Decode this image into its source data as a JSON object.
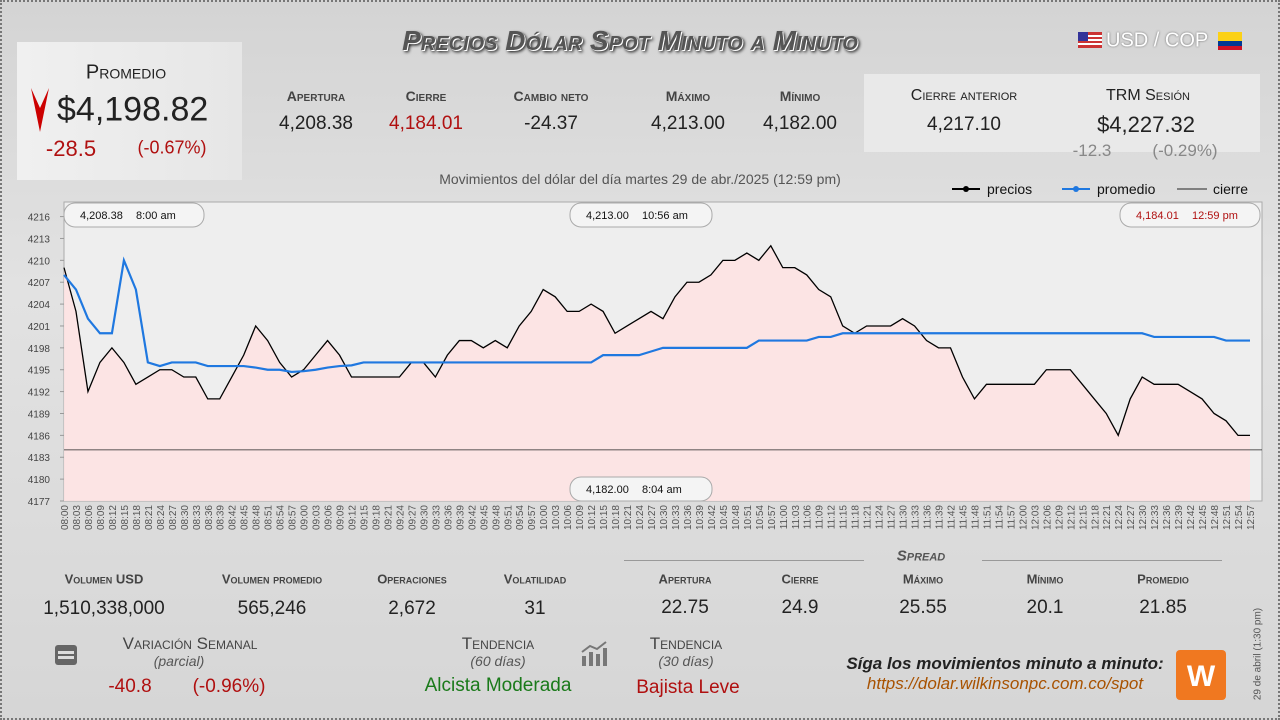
{
  "header": {
    "title": "Precios Dólar Spot Minuto a Minuto",
    "pair": "USD / COP"
  },
  "promedio": {
    "label": "Promedio",
    "value": "$4,198.82",
    "change": "-28.5",
    "change_pct": "(-0.67%)"
  },
  "stats": [
    {
      "label": "Apertura",
      "value": "4,208.38"
    },
    {
      "label": "Cierre",
      "value": "4,184.01"
    },
    {
      "label": "Cambio neto",
      "value": "-24.37"
    },
    {
      "label": "Máximo",
      "value": "4,213.00"
    },
    {
      "label": "Mínimo",
      "value": "4,182.00"
    }
  ],
  "cierre_anterior": {
    "label": "Cierre anterior",
    "value": "4,217.10"
  },
  "trm": {
    "label": "TRM Sesión",
    "value": "$4,227.32",
    "change": "-12.3",
    "change_pct": "(-0.29%)"
  },
  "chart_data": {
    "type": "line",
    "title": "Movimientos del dólar del día martes 29 de abr./2025 (12:59 pm)",
    "categories": [
      "08:00",
      "08:03",
      "08:06",
      "08:09",
      "08:12",
      "08:15",
      "08:18",
      "08:21",
      "08:24",
      "08:27",
      "08:30",
      "08:33",
      "08:36",
      "08:39",
      "08:42",
      "08:45",
      "08:48",
      "08:51",
      "08:54",
      "08:57",
      "09:00",
      "09:03",
      "09:06",
      "09:09",
      "09:12",
      "09:15",
      "09:18",
      "09:21",
      "09:24",
      "09:27",
      "09:30",
      "09:33",
      "09:36",
      "09:39",
      "09:42",
      "09:45",
      "09:48",
      "09:51",
      "09:54",
      "09:57",
      "10:00",
      "10:03",
      "10:06",
      "10:09",
      "10:12",
      "10:15",
      "10:18",
      "10:21",
      "10:24",
      "10:27",
      "10:30",
      "10:33",
      "10:36",
      "10:39",
      "10:42",
      "10:45",
      "10:48",
      "10:51",
      "10:54",
      "10:57",
      "11:00",
      "11:03",
      "11:06",
      "11:09",
      "11:12",
      "11:15",
      "11:18",
      "11:21",
      "11:24",
      "11:27",
      "11:30",
      "11:33",
      "11:36",
      "11:39",
      "11:42",
      "11:45",
      "11:48",
      "11:51",
      "11:54",
      "11:57",
      "12:00",
      "12:03",
      "12:06",
      "12:09",
      "12:12",
      "12:15",
      "12:18",
      "12:21",
      "12:24",
      "12:27",
      "12:30",
      "12:33",
      "12:36",
      "12:39",
      "12:42",
      "12:45",
      "12:48",
      "12:51",
      "12:54",
      "12:57"
    ],
    "series": [
      {
        "name": "precios",
        "color": "#000000",
        "values": [
          4209,
          4203,
          4192,
          4196,
          4198,
          4196,
          4193,
          4194,
          4195,
          4195,
          4194,
          4194,
          4191,
          4191,
          4194,
          4197,
          4201,
          4199,
          4196,
          4194,
          4195,
          4197,
          4199,
          4197,
          4194,
          4194,
          4194,
          4194,
          4194,
          4196,
          4196,
          4194,
          4197,
          4199,
          4199,
          4198,
          4199,
          4198,
          4201,
          4203,
          4206,
          4205,
          4203,
          4203,
          4204,
          4203,
          4200,
          4201,
          4202,
          4203,
          4202,
          4205,
          4207,
          4207,
          4208,
          4210,
          4210,
          4211,
          4210,
          4212,
          4209,
          4209,
          4208,
          4206,
          4205,
          4201,
          4200,
          4201,
          4201,
          4201,
          4202,
          4201,
          4199,
          4198,
          4198,
          4194,
          4191,
          4193,
          4193,
          4193,
          4193,
          4193,
          4195,
          4195,
          4195,
          4193,
          4191,
          4189,
          4186,
          4191,
          4194,
          4193,
          4193,
          4193,
          4192,
          4191,
          4189,
          4188,
          4186,
          4186
        ]
      },
      {
        "name": "promedio",
        "color": "#1f78e0",
        "values": [
          4208,
          4206,
          4202,
          4200,
          4200,
          4210,
          4206,
          4196,
          4195.5,
          4196,
          4196,
          4196,
          4195.5,
          4195.5,
          4195.5,
          4195.5,
          4195.3,
          4195,
          4195,
          4194.7,
          4194.8,
          4195,
          4195.3,
          4195.5,
          4195.6,
          4196,
          4196,
          4196,
          4196,
          4196,
          4196,
          4196,
          4196,
          4196,
          4196,
          4196,
          4196,
          4196,
          4196,
          4196,
          4196,
          4196,
          4196,
          4196,
          4196,
          4197,
          4197,
          4197,
          4197,
          4197.5,
          4198,
          4198,
          4198,
          4198,
          4198,
          4198,
          4198,
          4198,
          4199,
          4199,
          4199,
          4199,
          4199,
          4199.5,
          4199.5,
          4200,
          4200,
          4200,
          4200,
          4200,
          4200,
          4200,
          4200,
          4200,
          4200,
          4200,
          4200,
          4200,
          4200,
          4200,
          4200,
          4200,
          4200,
          4200,
          4200,
          4200,
          4200,
          4200,
          4200,
          4200,
          4200,
          4199.5,
          4199.5,
          4199.5,
          4199.5,
          4199.5,
          4199.5,
          4199,
          4199,
          4199
        ]
      }
    ],
    "reference_line": {
      "name": "cierre",
      "value": 4184.01
    },
    "annotations": [
      {
        "value": "4,208.38",
        "time": "8:00 am"
      },
      {
        "value": "4,213.00",
        "time": "10:56 am"
      },
      {
        "value": "4,184.01",
        "time": "12:59 pm"
      },
      {
        "value": "4,182.00",
        "time": "8:04 am"
      }
    ],
    "ylim": [
      4177,
      4218
    ],
    "yticks": [
      4177,
      4180,
      4183,
      4186,
      4189,
      4192,
      4195,
      4198,
      4201,
      4204,
      4207,
      4210,
      4213,
      4216
    ]
  },
  "volume": [
    {
      "label": "Volumen USD",
      "value": "1,510,338,000"
    },
    {
      "label": "Volumen promedio",
      "value": "565,246"
    },
    {
      "label": "Operaciones",
      "value": "2,672"
    },
    {
      "label": "Volatilidad",
      "value": "31"
    }
  ],
  "spread": {
    "title": "Spread",
    "items": [
      {
        "label": "Apertura",
        "value": "22.75"
      },
      {
        "label": "Cierre",
        "value": "24.9"
      },
      {
        "label": "Máximo",
        "value": "25.55"
      },
      {
        "label": "Mínimo",
        "value": "20.1"
      },
      {
        "label": "Promedio",
        "value": "21.85"
      }
    ]
  },
  "weekly": {
    "label": "Variación Semanal",
    "sub": "(parcial)",
    "change": "-40.8",
    "change_pct": "(-0.96%)"
  },
  "trend60": {
    "label": "Tendencia",
    "sub": "(60 días)",
    "value": "Alcista Moderada"
  },
  "trend30": {
    "label": "Tendencia",
    "sub": "(30 días)",
    "value": "Bajista Leve"
  },
  "footer": {
    "text": "Síga los movimientos minuto a minuto:",
    "url": "https://dolar.wilkinsonpc.com.co/spot",
    "date": "29 de abril (1:30 pm)"
  }
}
